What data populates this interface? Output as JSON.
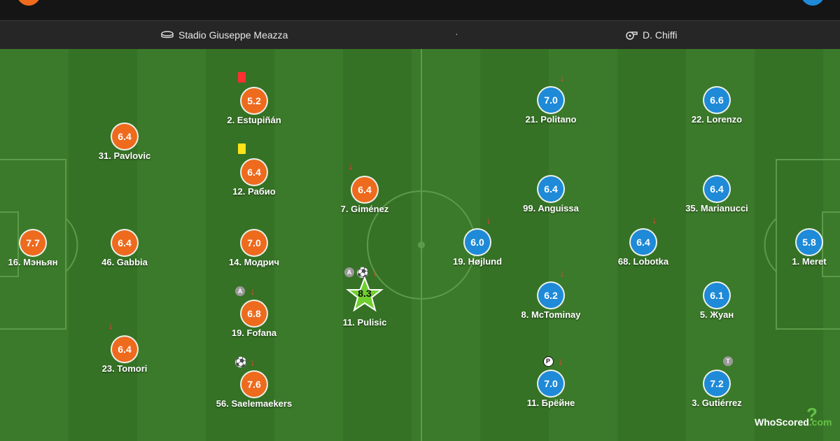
{
  "match_bar": {
    "venue": "Stadio Giuseppe Meazza",
    "separator": "·",
    "referee": "D. Chiffi"
  },
  "colors": {
    "home": "#ee6a1d",
    "away": "#1e8ad8",
    "motm": "#6fcf2f"
  },
  "home_team": {
    "players": [
      {
        "label": "16. Мэньян",
        "rating": "7.7",
        "icons": []
      },
      {
        "label": "31. Pavlovic",
        "rating": "6.4",
        "icons": []
      },
      {
        "label": "46. Gabbia",
        "rating": "6.4",
        "icons": []
      },
      {
        "label": "23. Tomori",
        "rating": "6.4",
        "icons": [
          "sub-off-arrow"
        ]
      },
      {
        "label": "2. Estupiñán",
        "rating": "5.2",
        "icons": [
          "red-card"
        ]
      },
      {
        "label": "12. Рабио",
        "rating": "6.4",
        "icons": [
          "yellow-card"
        ]
      },
      {
        "label": "14. Модрич",
        "rating": "7.0",
        "icons": []
      },
      {
        "label": "19. Fofana",
        "rating": "6.8",
        "icons": [
          "assist",
          "sub-off-arrow"
        ],
        "assist_text": "A"
      },
      {
        "label": "56. Saelemaekers",
        "rating": "7.6",
        "icons": [
          "goal",
          "sub-off-arrow"
        ]
      },
      {
        "label": "7. Giménez",
        "rating": "6.4",
        "icons": [
          "sub-off-arrow"
        ]
      },
      {
        "label": "11. Pulisic",
        "rating": "8.3",
        "icons": [
          "assist",
          "goal",
          "sub-off-arrow"
        ],
        "assist_text": "A",
        "man_of_the_match": true
      }
    ]
  },
  "away_team": {
    "players": [
      {
        "label": "19. Højlund",
        "rating": "6.0",
        "icons": [
          "sub-off-arrow"
        ]
      },
      {
        "label": "21. Politano",
        "rating": "7.0",
        "icons": [
          "sub-off-arrow"
        ]
      },
      {
        "label": "99. Anguissa",
        "rating": "6.4",
        "icons": []
      },
      {
        "label": "8. McTominay",
        "rating": "6.2",
        "icons": [
          "sub-off-arrow"
        ]
      },
      {
        "label": "11. Брёйне",
        "rating": "7.0",
        "icons": [
          "penalty",
          "sub-off-arrow"
        ],
        "penalty_text": "P"
      },
      {
        "label": "68. Lobotka",
        "rating": "6.4",
        "icons": [
          "sub-off-arrow"
        ]
      },
      {
        "label": "22. Lorenzo",
        "rating": "6.6",
        "icons": []
      },
      {
        "label": "35. Marianucci",
        "rating": "6.4",
        "icons": []
      },
      {
        "label": "5. Жуан",
        "rating": "6.1",
        "icons": []
      },
      {
        "label": "3. Gutiérrez",
        "rating": "7.2",
        "icons": [
          "tactical-badge"
        ],
        "tactical_text": "T"
      },
      {
        "label": "1. Meret",
        "rating": "5.8",
        "icons": []
      }
    ]
  },
  "brand": {
    "name": "WhoScored",
    "suffix": ".com",
    "mark": "?"
  }
}
